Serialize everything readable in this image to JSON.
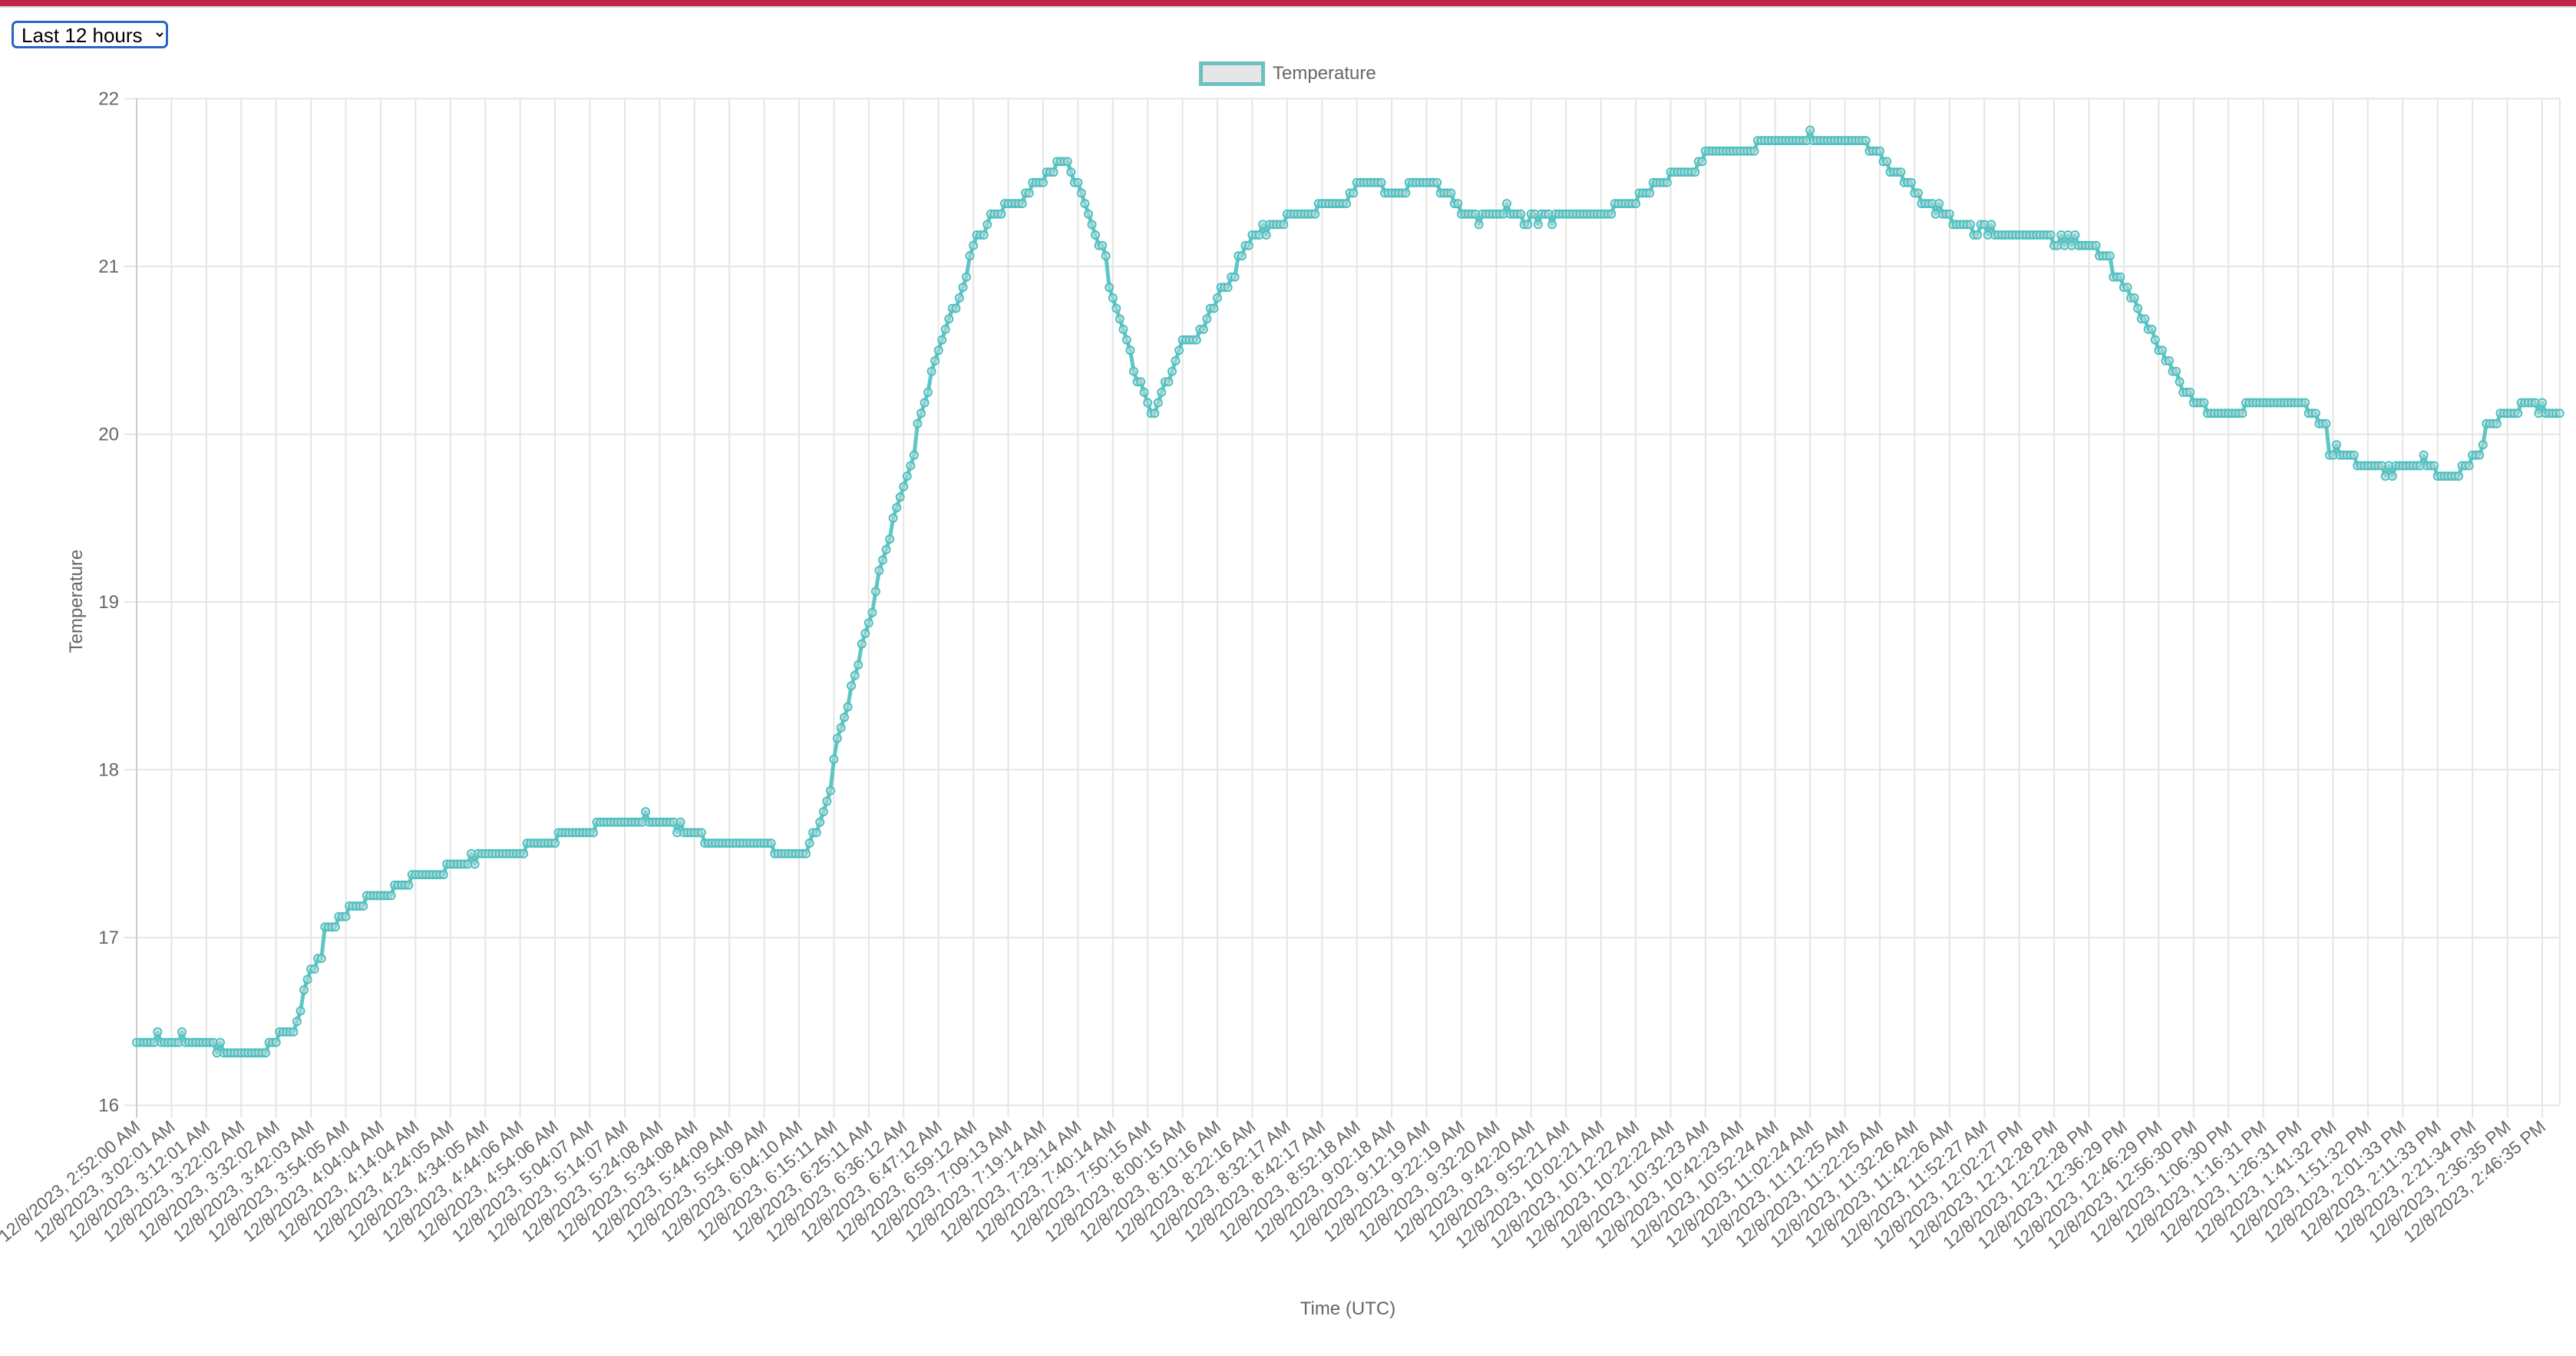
{
  "controls": {
    "range_select": {
      "selected": "Last 12 hours"
    }
  },
  "colors": {
    "top_bar": "#c02747",
    "series_line": "#4bc0c0",
    "series_fill": "#e6e6e6",
    "grid": "#e5e5e5",
    "text": "#666666",
    "select_border": "#2a63c8"
  },
  "chart_data": {
    "type": "line",
    "title": "",
    "xlabel": "Time (UTC)",
    "ylabel": "Temperature",
    "ylim": [
      16,
      22
    ],
    "y_ticks": [
      16,
      17,
      18,
      19,
      20,
      21,
      22
    ],
    "grid": true,
    "legend": {
      "position": "top",
      "entries": [
        "Temperature"
      ]
    },
    "points_per_tick_label": 10,
    "tick_labels": [
      "12/8/2023, 2:52:00 AM",
      "12/8/2023, 3:02:01 AM",
      "12/8/2023, 3:12:01 AM",
      "12/8/2023, 3:22:02 AM",
      "12/8/2023, 3:32:02 AM",
      "12/8/2023, 3:42:03 AM",
      "12/8/2023, 3:54:05 AM",
      "12/8/2023, 4:04:04 AM",
      "12/8/2023, 4:14:04 AM",
      "12/8/2023, 4:24:05 AM",
      "12/8/2023, 4:34:05 AM",
      "12/8/2023, 4:44:06 AM",
      "12/8/2023, 4:54:06 AM",
      "12/8/2023, 5:04:07 AM",
      "12/8/2023, 5:14:07 AM",
      "12/8/2023, 5:24:08 AM",
      "12/8/2023, 5:34:08 AM",
      "12/8/2023, 5:44:09 AM",
      "12/8/2023, 5:54:09 AM",
      "12/8/2023, 6:04:10 AM",
      "12/8/2023, 6:15:11 AM",
      "12/8/2023, 6:25:11 AM",
      "12/8/2023, 6:36:12 AM",
      "12/8/2023, 6:47:12 AM",
      "12/8/2023, 6:59:12 AM",
      "12/8/2023, 7:09:13 AM",
      "12/8/2023, 7:19:14 AM",
      "12/8/2023, 7:29:14 AM",
      "12/8/2023, 7:40:14 AM",
      "12/8/2023, 7:50:15 AM",
      "12/8/2023, 8:00:15 AM",
      "12/8/2023, 8:10:16 AM",
      "12/8/2023, 8:22:16 AM",
      "12/8/2023, 8:32:17 AM",
      "12/8/2023, 8:42:17 AM",
      "12/8/2023, 8:52:18 AM",
      "12/8/2023, 9:02:18 AM",
      "12/8/2023, 9:12:19 AM",
      "12/8/2023, 9:22:19 AM",
      "12/8/2023, 9:32:20 AM",
      "12/8/2023, 9:42:20 AM",
      "12/8/2023, 9:52:21 AM",
      "12/8/2023, 10:02:21 AM",
      "12/8/2023, 10:12:22 AM",
      "12/8/2023, 10:22:22 AM",
      "12/8/2023, 10:32:23 AM",
      "12/8/2023, 10:42:23 AM",
      "12/8/2023, 10:52:24 AM",
      "12/8/2023, 11:02:24 AM",
      "12/8/2023, 11:12:25 AM",
      "12/8/2023, 11:22:25 AM",
      "12/8/2023, 11:32:26 AM",
      "12/8/2023, 11:42:26 AM",
      "12/8/2023, 11:52:27 AM",
      "12/8/2023, 12:02:27 PM",
      "12/8/2023, 12:12:28 PM",
      "12/8/2023, 12:22:28 PM",
      "12/8/2023, 12:36:29 PM",
      "12/8/2023, 12:46:29 PM",
      "12/8/2023, 12:56:30 PM",
      "12/8/2023, 1:06:30 PM",
      "12/8/2023, 1:16:31 PM",
      "12/8/2023, 1:26:31 PM",
      "12/8/2023, 1:41:32 PM",
      "12/8/2023, 1:51:32 PM",
      "12/8/2023, 2:01:33 PM",
      "12/8/2023, 2:11:33 PM",
      "12/8/2023, 2:21:34 PM",
      "12/8/2023, 2:36:35 PM",
      "12/8/2023, 2:46:35 PM"
    ],
    "series": [
      {
        "name": "Temperature",
        "values": [
          16.375,
          16.375,
          16.375,
          16.375,
          16.375,
          16.375,
          16.4375,
          16.375,
          16.375,
          16.375,
          16.375,
          16.375,
          16.375,
          16.4375,
          16.375,
          16.375,
          16.375,
          16.375,
          16.375,
          16.375,
          16.375,
          16.375,
          16.375,
          16.3125,
          16.375,
          16.3125,
          16.3125,
          16.3125,
          16.3125,
          16.3125,
          16.3125,
          16.3125,
          16.3125,
          16.3125,
          16.3125,
          16.3125,
          16.3125,
          16.3125,
          16.375,
          16.375,
          16.375,
          16.4375,
          16.4375,
          16.4375,
          16.4375,
          16.4375,
          16.5,
          16.5625,
          16.6875,
          16.75,
          16.8125,
          16.8125,
          16.875,
          16.875,
          17.0625,
          17.0625,
          17.0625,
          17.0625,
          17.125,
          17.125,
          17.125,
          17.1875,
          17.1875,
          17.1875,
          17.1875,
          17.1875,
          17.25,
          17.25,
          17.25,
          17.25,
          17.25,
          17.25,
          17.25,
          17.25,
          17.3125,
          17.3125,
          17.3125,
          17.3125,
          17.3125,
          17.375,
          17.375,
          17.375,
          17.375,
          17.375,
          17.375,
          17.375,
          17.375,
          17.375,
          17.375,
          17.4375,
          17.4375,
          17.4375,
          17.4375,
          17.4375,
          17.4375,
          17.4375,
          17.5,
          17.4375,
          17.5,
          17.5,
          17.5,
          17.5,
          17.5,
          17.5,
          17.5,
          17.5,
          17.5,
          17.5,
          17.5,
          17.5,
          17.5,
          17.5,
          17.5625,
          17.5625,
          17.5625,
          17.5625,
          17.5625,
          17.5625,
          17.5625,
          17.5625,
          17.5625,
          17.625,
          17.625,
          17.625,
          17.625,
          17.625,
          17.625,
          17.625,
          17.625,
          17.625,
          17.625,
          17.625,
          17.6875,
          17.6875,
          17.6875,
          17.6875,
          17.6875,
          17.6875,
          17.6875,
          17.6875,
          17.6875,
          17.6875,
          17.6875,
          17.6875,
          17.6875,
          17.6875,
          17.75,
          17.6875,
          17.6875,
          17.6875,
          17.6875,
          17.6875,
          17.6875,
          17.6875,
          17.6875,
          17.625,
          17.6875,
          17.625,
          17.625,
          17.625,
          17.625,
          17.625,
          17.625,
          17.5625,
          17.5625,
          17.5625,
          17.5625,
          17.5625,
          17.5625,
          17.5625,
          17.5625,
          17.5625,
          17.5625,
          17.5625,
          17.5625,
          17.5625,
          17.5625,
          17.5625,
          17.5625,
          17.5625,
          17.5625,
          17.5625,
          17.5625,
          17.5,
          17.5,
          17.5,
          17.5,
          17.5,
          17.5,
          17.5,
          17.5,
          17.5,
          17.5,
          17.5625,
          17.625,
          17.625,
          17.6875,
          17.75,
          17.8125,
          17.875,
          18.0625,
          18.1875,
          18.25,
          18.3125,
          18.375,
          18.5,
          18.5625,
          18.625,
          18.75,
          18.8125,
          18.875,
          18.9375,
          19.0625,
          19.1875,
          19.25,
          19.3125,
          19.375,
          19.5,
          19.5625,
          19.625,
          19.6875,
          19.75,
          19.8125,
          19.875,
          20.0625,
          20.125,
          20.1875,
          20.25,
          20.375,
          20.4375,
          20.5,
          20.5625,
          20.625,
          20.6875,
          20.75,
          20.75,
          20.8125,
          20.875,
          20.9375,
          21.0625,
          21.125,
          21.1875,
          21.1875,
          21.1875,
          21.25,
          21.3125,
          21.3125,
          21.3125,
          21.3125,
          21.375,
          21.375,
          21.375,
          21.375,
          21.375,
          21.375,
          21.4375,
          21.4375,
          21.5,
          21.5,
          21.5,
          21.5,
          21.5625,
          21.5625,
          21.5625,
          21.625,
          21.625,
          21.625,
          21.625,
          21.5625,
          21.5,
          21.5,
          21.4375,
          21.375,
          21.3125,
          21.25,
          21.1875,
          21.125,
          21.125,
          21.0625,
          20.875,
          20.8125,
          20.75,
          20.6875,
          20.625,
          20.5625,
          20.5,
          20.375,
          20.3125,
          20.3125,
          20.25,
          20.1875,
          20.125,
          20.125,
          20.1875,
          20.25,
          20.3125,
          20.3125,
          20.375,
          20.4375,
          20.5,
          20.5625,
          20.5625,
          20.5625,
          20.5625,
          20.5625,
          20.625,
          20.625,
          20.6875,
          20.75,
          20.75,
          20.8125,
          20.875,
          20.875,
          20.875,
          20.9375,
          20.9375,
          21.0625,
          21.0625,
          21.125,
          21.125,
          21.1875,
          21.1875,
          21.1875,
          21.25,
          21.1875,
          21.25,
          21.25,
          21.25,
          21.25,
          21.25,
          21.3125,
          21.3125,
          21.3125,
          21.3125,
          21.3125,
          21.3125,
          21.3125,
          21.3125,
          21.3125,
          21.375,
          21.375,
          21.375,
          21.375,
          21.375,
          21.375,
          21.375,
          21.375,
          21.375,
          21.4375,
          21.4375,
          21.5,
          21.5,
          21.5,
          21.5,
          21.5,
          21.5,
          21.5,
          21.5,
          21.4375,
          21.4375,
          21.4375,
          21.4375,
          21.4375,
          21.4375,
          21.4375,
          21.5,
          21.5,
          21.5,
          21.5,
          21.5,
          21.5,
          21.5,
          21.5,
          21.5,
          21.4375,
          21.4375,
          21.4375,
          21.4375,
          21.375,
          21.375,
          21.3125,
          21.3125,
          21.3125,
          21.3125,
          21.3125,
          21.25,
          21.3125,
          21.3125,
          21.3125,
          21.3125,
          21.3125,
          21.3125,
          21.3125,
          21.375,
          21.3125,
          21.3125,
          21.3125,
          21.3125,
          21.25,
          21.25,
          21.3125,
          21.3125,
          21.25,
          21.3125,
          21.3125,
          21.3125,
          21.25,
          21.3125,
          21.3125,
          21.3125,
          21.3125,
          21.3125,
          21.3125,
          21.3125,
          21.3125,
          21.3125,
          21.3125,
          21.3125,
          21.3125,
          21.3125,
          21.3125,
          21.3125,
          21.3125,
          21.3125,
          21.375,
          21.375,
          21.375,
          21.375,
          21.375,
          21.375,
          21.375,
          21.4375,
          21.4375,
          21.4375,
          21.4375,
          21.5,
          21.5,
          21.5,
          21.5,
          21.5,
          21.5625,
          21.5625,
          21.5625,
          21.5625,
          21.5625,
          21.5625,
          21.5625,
          21.5625,
          21.625,
          21.625,
          21.6875,
          21.6875,
          21.6875,
          21.6875,
          21.6875,
          21.6875,
          21.6875,
          21.6875,
          21.6875,
          21.6875,
          21.6875,
          21.6875,
          21.6875,
          21.6875,
          21.6875,
          21.75,
          21.75,
          21.75,
          21.75,
          21.75,
          21.75,
          21.75,
          21.75,
          21.75,
          21.75,
          21.75,
          21.75,
          21.75,
          21.75,
          21.75,
          21.8125,
          21.75,
          21.75,
          21.75,
          21.75,
          21.75,
          21.75,
          21.75,
          21.75,
          21.75,
          21.75,
          21.75,
          21.75,
          21.75,
          21.75,
          21.75,
          21.75,
          21.6875,
          21.6875,
          21.6875,
          21.6875,
          21.625,
          21.625,
          21.5625,
          21.5625,
          21.5625,
          21.5625,
          21.5,
          21.5,
          21.5,
          21.4375,
          21.4375,
          21.375,
          21.375,
          21.375,
          21.375,
          21.3125,
          21.375,
          21.3125,
          21.3125,
          21.3125,
          21.25,
          21.25,
          21.25,
          21.25,
          21.25,
          21.25,
          21.1875,
          21.1875,
          21.25,
          21.25,
          21.1875,
          21.25,
          21.1875,
          21.1875,
          21.1875,
          21.1875,
          21.1875,
          21.1875,
          21.1875,
          21.1875,
          21.1875,
          21.1875,
          21.1875,
          21.1875,
          21.1875,
          21.1875,
          21.1875,
          21.1875,
          21.1875,
          21.125,
          21.125,
          21.1875,
          21.125,
          21.1875,
          21.125,
          21.1875,
          21.125,
          21.125,
          21.125,
          21.125,
          21.125,
          21.125,
          21.0625,
          21.0625,
          21.0625,
          21.0625,
          20.9375,
          20.9375,
          20.9375,
          20.875,
          20.875,
          20.8125,
          20.8125,
          20.75,
          20.6875,
          20.6875,
          20.625,
          20.625,
          20.5625,
          20.5,
          20.5,
          20.4375,
          20.4375,
          20.375,
          20.375,
          20.3125,
          20.25,
          20.25,
          20.25,
          20.1875,
          20.1875,
          20.1875,
          20.1875,
          20.125,
          20.125,
          20.125,
          20.125,
          20.125,
          20.125,
          20.125,
          20.125,
          20.125,
          20.125,
          20.125,
          20.1875,
          20.1875,
          20.1875,
          20.1875,
          20.1875,
          20.1875,
          20.1875,
          20.1875,
          20.1875,
          20.1875,
          20.1875,
          20.1875,
          20.1875,
          20.1875,
          20.1875,
          20.1875,
          20.1875,
          20.1875,
          20.125,
          20.125,
          20.125,
          20.0625,
          20.0625,
          20.0625,
          19.875,
          19.875,
          19.9375,
          19.875,
          19.875,
          19.875,
          19.875,
          19.875,
          19.8125,
          19.8125,
          19.8125,
          19.8125,
          19.8125,
          19.8125,
          19.8125,
          19.8125,
          19.75,
          19.8125,
          19.75,
          19.8125,
          19.8125,
          19.8125,
          19.8125,
          19.8125,
          19.8125,
          19.8125,
          19.8125,
          19.875,
          19.8125,
          19.8125,
          19.8125,
          19.75,
          19.75,
          19.75,
          19.75,
          19.75,
          19.75,
          19.75,
          19.8125,
          19.8125,
          19.8125,
          19.875,
          19.875,
          19.875,
          19.9375,
          20.0625,
          20.0625,
          20.0625,
          20.0625,
          20.125,
          20.125,
          20.125,
          20.125,
          20.125,
          20.125,
          20.1875,
          20.1875,
          20.1875,
          20.1875,
          20.1875,
          20.125,
          20.1875,
          20.125,
          20.125,
          20.125,
          20.125,
          20.125
        ]
      }
    ]
  }
}
